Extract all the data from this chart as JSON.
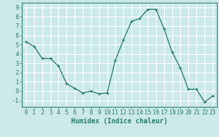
{
  "x": [
    0,
    1,
    2,
    3,
    4,
    5,
    6,
    7,
    8,
    9,
    10,
    11,
    12,
    13,
    14,
    15,
    16,
    17,
    18,
    19,
    20,
    21,
    22,
    23
  ],
  "y": [
    5.3,
    4.8,
    3.5,
    3.5,
    2.7,
    0.8,
    0.3,
    -0.2,
    0.0,
    -0.3,
    -0.2,
    3.3,
    5.5,
    7.5,
    7.8,
    8.8,
    8.8,
    6.7,
    4.2,
    2.5,
    0.2,
    0.2,
    -1.2,
    -0.5
  ],
  "line_color": "#2e7d6e",
  "marker_color": "#2e7d6e",
  "bg_color": "#cce8e8",
  "grid_color": "#ffffff",
  "xlabel": "Humidex (Indice chaleur)",
  "xlim": [
    -0.5,
    23.5
  ],
  "ylim": [
    -1.7,
    9.5
  ],
  "yticks": [
    -1,
    0,
    1,
    2,
    3,
    4,
    5,
    6,
    7,
    8,
    9
  ],
  "xticks": [
    0,
    1,
    2,
    3,
    4,
    5,
    6,
    7,
    8,
    9,
    10,
    11,
    12,
    13,
    14,
    15,
    16,
    17,
    18,
    19,
    20,
    21,
    22,
    23
  ],
  "tick_color": "#2e7d6e",
  "label_fontsize": 6.0,
  "xlabel_fontsize": 7.0,
  "axis_color": "#2e7d6e",
  "linewidth": 1.0,
  "markersize": 3.5
}
